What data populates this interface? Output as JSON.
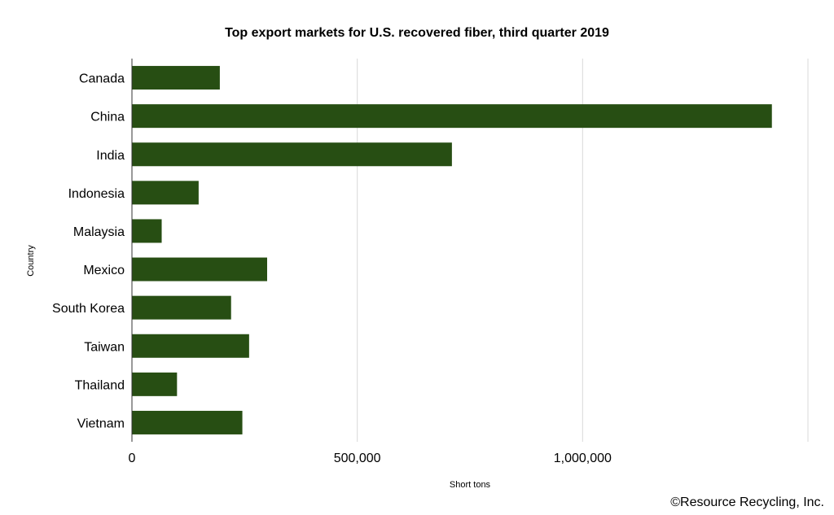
{
  "chart_data": {
    "type": "bar",
    "orientation": "horizontal",
    "title": "Top export markets for U.S. recovered fiber, third quarter 2019",
    "xlabel": "Short tons",
    "ylabel": "Country",
    "categories": [
      "Canada",
      "China",
      "India",
      "Indonesia",
      "Malaysia",
      "Mexico",
      "South Korea",
      "Taiwan",
      "Thailand",
      "Vietnam"
    ],
    "values": [
      195000,
      1420000,
      710000,
      148000,
      66000,
      300000,
      220000,
      260000,
      100000,
      245000
    ],
    "xlim": [
      0,
      1500000
    ],
    "xticks": [
      0,
      500000,
      1000000
    ],
    "xtick_labels": [
      "0",
      "500,000",
      "1,000,000"
    ],
    "grid": "vertical",
    "bar_color": "#274e13",
    "grid_color": "#d9d9d9"
  },
  "footer": {
    "copyright": "©Resource Recycling, Inc."
  }
}
